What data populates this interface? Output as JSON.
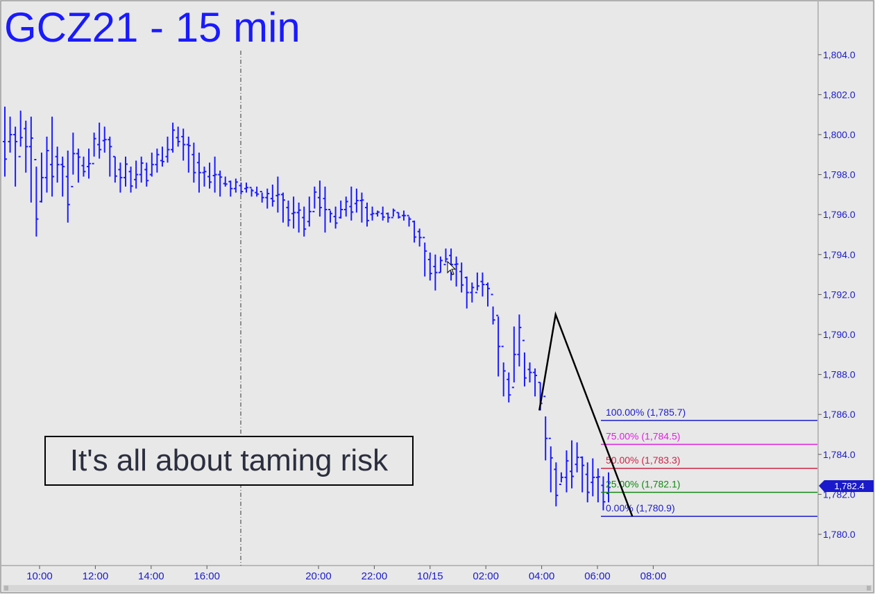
{
  "chart_data": {
    "type": "ohlc",
    "title": "GCZ21 - 15 min",
    "annotation": "It's all about taming risk",
    "y_axis": {
      "ticks": [
        "1,780.0",
        "1,782.0",
        "1,784.0",
        "1,786.0",
        "1,788.0",
        "1,790.0",
        "1,792.0",
        "1,794.0",
        "1,796.0",
        "1,798.0",
        "1,800.0",
        "1,802.0",
        "1,804.0"
      ],
      "range": [
        1779.0,
        1806.0
      ]
    },
    "x_axis": {
      "ticks": [
        "10:00",
        "12:00",
        "14:00",
        "16:00",
        "20:00",
        "22:00",
        "10/15",
        "02:00",
        "04:00",
        "06:00",
        "08:00"
      ]
    },
    "last_price": "1,782.4",
    "fib_levels": [
      {
        "label": "100.00% (1,785.7)",
        "price": 1785.7,
        "color": "#1a1acc"
      },
      {
        "label": "75.00% (1,784.5)",
        "price": 1784.5,
        "color": "#e020e0"
      },
      {
        "label": "50.00% (1,783.3)",
        "price": 1783.3,
        "color": "#cc2244"
      },
      {
        "label": "25.00% (1,782.1)",
        "price": 1782.1,
        "color": "#118811"
      },
      {
        "label": "0.00% (1,780.9)",
        "price": 1780.9,
        "color": "#1a1acc"
      }
    ],
    "pattern": {
      "points": [
        {
          "x": "03:55",
          "price": 1786.2
        },
        {
          "x": "04:30",
          "price": 1791.0
        },
        {
          "x": "07:15",
          "price": 1780.9
        }
      ]
    },
    "bars": [
      [
        1801.4,
        1797.9
      ],
      [
        1800.9,
        1799.1
      ],
      [
        1800.4,
        1797.4
      ],
      [
        1801.2,
        1799.4
      ],
      [
        1800.7,
        1798.1
      ],
      [
        1800.9,
        1796.6
      ],
      [
        1798.4,
        1794.9
      ],
      [
        1799.1,
        1796.6
      ],
      [
        1799.9,
        1797.1
      ],
      [
        1800.9,
        1796.9
      ],
      [
        1799.4,
        1797.6
      ],
      [
        1798.9,
        1796.9
      ],
      [
        1799.2,
        1795.6
      ],
      [
        1800.1,
        1798.0
      ],
      [
        1799.3,
        1797.6
      ],
      [
        1798.9,
        1797.9
      ],
      [
        1799.3,
        1797.8
      ],
      [
        1800.1,
        1798.9
      ],
      [
        1800.6,
        1798.8
      ],
      [
        1800.4,
        1799.1
      ],
      [
        1799.9,
        1797.9
      ],
      [
        1798.9,
        1797.6
      ],
      [
        1798.6,
        1797.1
      ],
      [
        1798.9,
        1797.4
      ],
      [
        1798.4,
        1797.1
      ],
      [
        1798.7,
        1797.3
      ],
      [
        1798.9,
        1797.6
      ],
      [
        1798.6,
        1797.4
      ],
      [
        1799.1,
        1797.9
      ],
      [
        1799.3,
        1798.1
      ],
      [
        1799.4,
        1798.4
      ],
      [
        1799.9,
        1798.6
      ],
      [
        1800.6,
        1799.1
      ],
      [
        1800.4,
        1799.4
      ],
      [
        1800.3,
        1798.7
      ],
      [
        1799.9,
        1798.1
      ],
      [
        1799.6,
        1797.6
      ],
      [
        1799.1,
        1797.1
      ],
      [
        1798.4,
        1797.4
      ],
      [
        1798.6,
        1797.3
      ],
      [
        1798.9,
        1797.1
      ],
      [
        1798.2,
        1796.9
      ],
      [
        1797.9,
        1797.4
      ],
      [
        1797.7,
        1796.9
      ],
      [
        1797.8,
        1797.1
      ],
      [
        1797.6,
        1797.0
      ],
      [
        1797.6,
        1797.1
      ],
      [
        1797.3,
        1796.9
      ],
      [
        1797.4,
        1796.9
      ],
      [
        1797.1,
        1796.6
      ],
      [
        1797.3,
        1796.3
      ],
      [
        1797.5,
        1796.4
      ],
      [
        1797.9,
        1796.1
      ],
      [
        1797.1,
        1795.6
      ],
      [
        1796.7,
        1795.4
      ],
      [
        1796.9,
        1795.3
      ],
      [
        1796.6,
        1795.1
      ],
      [
        1796.4,
        1794.9
      ],
      [
        1796.9,
        1795.4
      ],
      [
        1797.4,
        1796.3
      ],
      [
        1797.7,
        1795.9
      ],
      [
        1797.4,
        1795.1
      ],
      [
        1796.2,
        1795.6
      ],
      [
        1796.4,
        1795.3
      ],
      [
        1796.7,
        1795.8
      ],
      [
        1796.9,
        1795.9
      ],
      [
        1797.4,
        1795.7
      ],
      [
        1797.3,
        1796.1
      ],
      [
        1797.1,
        1795.6
      ],
      [
        1796.6,
        1795.4
      ],
      [
        1796.4,
        1795.7
      ],
      [
        1796.2,
        1795.9
      ],
      [
        1796.4,
        1795.7
      ],
      [
        1796.1,
        1795.6
      ],
      [
        1796.3,
        1795.9
      ],
      [
        1796.1,
        1795.8
      ],
      [
        1796.2,
        1795.7
      ],
      [
        1795.9,
        1795.4
      ],
      [
        1795.7,
        1794.6
      ],
      [
        1795.3,
        1794.4
      ],
      [
        1794.6,
        1792.9
      ],
      [
        1794.1,
        1792.7
      ],
      [
        1794.0,
        1792.2
      ],
      [
        1793.9,
        1793.1
      ],
      [
        1794.3,
        1793.6
      ],
      [
        1794.3,
        1792.7
      ],
      [
        1793.9,
        1792.4
      ],
      [
        1793.6,
        1792.1
      ],
      [
        1792.9,
        1791.3
      ],
      [
        1792.6,
        1791.6
      ],
      [
        1793.1,
        1792.2
      ],
      [
        1793.1,
        1791.9
      ],
      [
        1792.6,
        1791.4
      ],
      [
        1791.4,
        1790.5
      ],
      [
        1790.9,
        1787.9
      ],
      [
        1788.6,
        1786.9
      ],
      [
        1788.1,
        1786.6
      ],
      [
        1790.4,
        1787.6
      ],
      [
        1791.0,
        1788.4
      ],
      [
        1789.1,
        1787.4
      ],
      [
        1788.6,
        1787.6
      ],
      [
        1788.3,
        1786.9
      ],
      [
        1787.6,
        1786.2
      ],
      [
        1785.9,
        1783.7
      ],
      [
        1784.4,
        1782.1
      ],
      [
        1783.6,
        1781.4
      ],
      [
        1783.1,
        1782.6
      ],
      [
        1784.2,
        1782.1
      ],
      [
        1784.7,
        1782.3
      ],
      [
        1784.6,
        1783.1
      ],
      [
        1783.9,
        1782.1
      ],
      [
        1783.6,
        1781.6
      ],
      [
        1783.8,
        1781.9
      ],
      [
        1783.3,
        1781.6
      ],
      [
        1782.9,
        1781.2
      ],
      [
        1783.1,
        1781.6
      ]
    ]
  }
}
